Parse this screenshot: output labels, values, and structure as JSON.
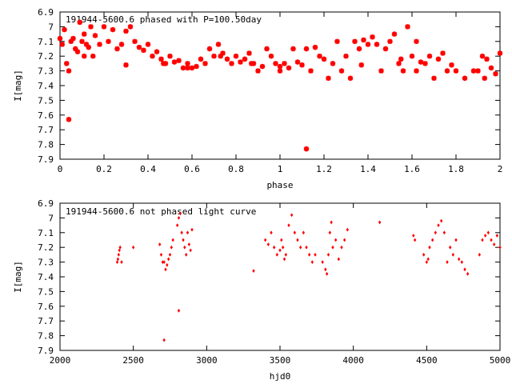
{
  "chart_data": [
    {
      "type": "scatter",
      "title": "191944-5600.6 phased with P=100.50day",
      "xlabel": "phase",
      "ylabel": "I[mag]",
      "xlim": [
        0,
        2
      ],
      "ylim": [
        6.9,
        7.9
      ],
      "y_inverted": true,
      "xticks": [
        0,
        0.2,
        0.4,
        0.6,
        0.8,
        1,
        1.2,
        1.4,
        1.6,
        1.8,
        2
      ],
      "xtick_labels": [
        "0",
        "0.2",
        "0.4",
        "0.6",
        "0.8",
        "1",
        "1.2",
        "1.4",
        "1.6",
        "1.8",
        "2"
      ],
      "yticks": [
        6.9,
        7,
        7.1,
        7.2,
        7.3,
        7.4,
        7.5,
        7.6,
        7.7,
        7.8,
        7.9
      ],
      "ytick_labels": [
        "6.9",
        "7",
        "7.1",
        "7.2",
        "7.3",
        "7.4",
        "7.5",
        "7.6",
        "7.7",
        "7.8",
        "7.9"
      ],
      "grid": false,
      "color": "#ff0000",
      "marker": "star",
      "x": [
        0.0,
        0.01,
        0.02,
        0.03,
        0.04,
        0.05,
        0.06,
        0.07,
        0.08,
        0.09,
        0.1,
        0.11,
        0.12,
        0.13,
        0.14,
        0.15,
        0.16,
        0.18,
        0.2,
        0.22,
        0.24,
        0.26,
        0.28,
        0.3,
        0.32,
        0.34,
        0.36,
        0.38,
        0.4,
        0.42,
        0.44,
        0.46,
        0.48,
        0.5,
        0.52,
        0.54,
        0.56,
        0.58,
        0.6,
        0.62,
        0.64,
        0.66,
        0.68,
        0.7,
        0.72,
        0.74,
        0.76,
        0.78,
        0.8,
        0.82,
        0.84,
        0.86,
        0.88,
        0.9,
        0.92,
        0.94,
        0.96,
        0.98,
        1.0,
        1.02,
        1.04,
        1.06,
        1.08,
        1.1,
        1.12,
        1.14,
        1.16,
        1.18,
        1.2,
        1.22,
        1.24,
        1.26,
        1.28,
        1.3,
        1.32,
        1.34,
        1.36,
        1.38,
        1.4,
        1.42,
        1.44,
        1.46,
        1.48,
        1.5,
        1.52,
        1.54,
        1.56,
        1.58,
        1.6,
        1.62,
        1.64,
        1.66,
        1.68,
        1.7,
        1.72,
        1.74,
        1.76,
        1.78,
        1.8,
        1.84,
        1.88,
        1.9,
        1.92,
        1.94,
        1.96,
        1.98,
        2.0,
        0.04,
        1.12,
        0.11,
        0.3,
        0.47,
        0.58,
        0.73,
        0.87,
        1.0,
        1.37,
        1.55,
        1.62,
        1.93
      ],
      "y": [
        7.08,
        7.12,
        7.02,
        7.25,
        7.3,
        7.1,
        7.08,
        7.15,
        7.17,
        6.97,
        7.1,
        7.05,
        7.12,
        7.14,
        7.0,
        7.2,
        7.06,
        7.12,
        7.0,
        7.1,
        7.02,
        7.15,
        7.12,
        7.03,
        7.0,
        7.1,
        7.14,
        7.16,
        7.12,
        7.2,
        7.17,
        7.22,
        7.25,
        7.2,
        7.24,
        7.23,
        7.28,
        7.25,
        7.28,
        7.27,
        7.22,
        7.25,
        7.15,
        7.2,
        7.12,
        7.18,
        7.22,
        7.25,
        7.2,
        7.24,
        7.22,
        7.18,
        7.25,
        7.3,
        7.27,
        7.15,
        7.2,
        7.25,
        7.3,
        7.25,
        7.28,
        7.15,
        7.24,
        7.26,
        7.15,
        7.3,
        7.14,
        7.2,
        7.22,
        7.35,
        7.25,
        7.1,
        7.3,
        7.2,
        7.35,
        7.1,
        7.15,
        7.09,
        7.12,
        7.07,
        7.12,
        7.3,
        7.15,
        7.1,
        7.05,
        7.25,
        7.3,
        7.0,
        7.2,
        7.1,
        7.24,
        7.25,
        7.2,
        7.35,
        7.22,
        7.18,
        7.3,
        7.26,
        7.3,
        7.35,
        7.3,
        7.3,
        7.2,
        7.22,
        7.28,
        7.32,
        7.18,
        7.63,
        7.83,
        7.2,
        7.26,
        7.25,
        7.28,
        7.2,
        7.25,
        7.27,
        7.26,
        7.22,
        7.3,
        7.35
      ]
    },
    {
      "type": "scatter",
      "title": "191944-5600.6 not phased light curve",
      "xlabel": "hjd0",
      "ylabel": "I[mag]",
      "xlim": [
        2000,
        5000
      ],
      "ylim": [
        6.9,
        7.9
      ],
      "y_inverted": true,
      "xticks": [
        2000,
        2500,
        3000,
        3500,
        4000,
        4500,
        5000
      ],
      "xtick_labels": [
        "2000",
        "2500",
        "3000",
        "3500",
        "4000",
        "4500",
        "5000"
      ],
      "yticks": [
        6.9,
        7,
        7.1,
        7.2,
        7.3,
        7.4,
        7.5,
        7.6,
        7.7,
        7.8,
        7.9
      ],
      "ytick_labels": [
        "6.9",
        "7",
        "7.1",
        "7.2",
        "7.3",
        "7.4",
        "7.5",
        "7.6",
        "7.7",
        "7.8",
        "7.9"
      ],
      "grid": false,
      "color": "#ff0000",
      "marker": "diamond",
      "x": [
        2390,
        2395,
        2400,
        2405,
        2410,
        2420,
        2500,
        2680,
        2690,
        2700,
        2710,
        2720,
        2730,
        2740,
        2750,
        2760,
        2770,
        2800,
        2810,
        2820,
        2830,
        2840,
        2850,
        2860,
        2870,
        2880,
        2890,
        2900,
        2710,
        2810,
        3320,
        3400,
        3420,
        3440,
        3460,
        3480,
        3500,
        3510,
        3520,
        3530,
        3540,
        3560,
        3580,
        3600,
        3620,
        3640,
        3660,
        3680,
        3700,
        3720,
        3740,
        3790,
        3810,
        3820,
        3830,
        3840,
        3850,
        3860,
        3880,
        3900,
        3920,
        3940,
        3960,
        4180,
        4410,
        4420,
        4480,
        4500,
        4510,
        4520,
        4540,
        4560,
        4580,
        4600,
        4620,
        4640,
        4660,
        4680,
        4700,
        4720,
        4740,
        4760,
        4780,
        4860,
        4880,
        4900,
        4920,
        4940,
        4960,
        4980,
        5000
      ],
      "y": [
        7.3,
        7.28,
        7.25,
        7.22,
        7.2,
        7.3,
        7.2,
        7.18,
        7.25,
        7.3,
        7.3,
        7.35,
        7.32,
        7.28,
        7.25,
        7.2,
        7.15,
        7.05,
        7.0,
        6.97,
        7.1,
        7.15,
        7.2,
        7.25,
        7.1,
        7.18,
        7.22,
        7.08,
        7.83,
        7.63,
        7.36,
        7.15,
        7.18,
        7.1,
        7.2,
        7.25,
        7.22,
        7.15,
        7.2,
        7.28,
        7.25,
        7.05,
        6.98,
        7.1,
        7.15,
        7.2,
        7.1,
        7.2,
        7.25,
        7.3,
        7.25,
        7.3,
        7.35,
        7.38,
        7.25,
        7.1,
        7.03,
        7.2,
        7.15,
        7.28,
        7.2,
        7.15,
        7.08,
        7.03,
        7.12,
        7.15,
        7.25,
        7.3,
        7.28,
        7.2,
        7.15,
        7.1,
        7.05,
        7.02,
        7.1,
        7.3,
        7.2,
        7.25,
        7.15,
        7.28,
        7.3,
        7.35,
        7.38,
        7.25,
        7.15,
        7.12,
        7.1,
        7.15,
        7.18,
        7.12,
        7.2
      ]
    }
  ]
}
